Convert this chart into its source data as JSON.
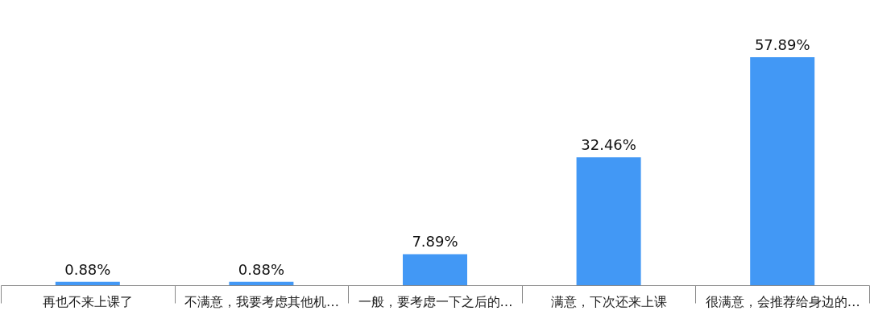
{
  "chart_data": {
    "type": "bar",
    "categories": [
      "再也不来上课了",
      "不满意，我要考虑其他机…",
      "一般，要考虑一下之后的…",
      "满意，下次还来上课",
      "很满意，会推荐给身边的…"
    ],
    "values": [
      0.88,
      0.88,
      7.89,
      32.46,
      57.89
    ],
    "value_labels": [
      "0.88%",
      "0.88%",
      "7.89%",
      "32.46%",
      "57.89%"
    ],
    "color": "#4298f5"
  }
}
